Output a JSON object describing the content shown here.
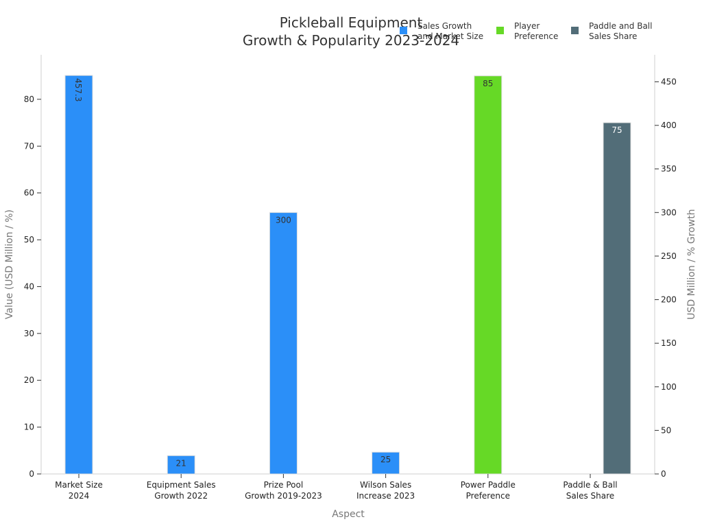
{
  "chart_data": {
    "type": "bar",
    "title": [
      "Pickleball Equipment",
      "Growth & Popularity 2023-2024"
    ],
    "xlabel": "Aspect",
    "ylabel": "Value (USD Million / %)",
    "y2label": "USD Million / % Growth",
    "categories": [
      [
        "Market Size",
        "2024"
      ],
      [
        "Equipment Sales",
        "Growth 2022"
      ],
      [
        "Prize Pool",
        "Growth 2019-2023"
      ],
      [
        "Wilson Sales",
        "Increase 2023"
      ],
      [
        "Power Paddle",
        "Preference"
      ],
      [
        "Paddle & Ball",
        "Sales Share"
      ]
    ],
    "ylim": [
      0,
      89.5
    ],
    "y_ticks": [
      0,
      10,
      20,
      30,
      40,
      50,
      60,
      70,
      80
    ],
    "y2lim": [
      0,
      481
    ],
    "y2_ticks": [
      0,
      50,
      100,
      150,
      200,
      250,
      300,
      350,
      400,
      450
    ],
    "legend_position": "top-right",
    "grid": false,
    "series": [
      {
        "name": [
          "Sales Growth",
          "and Market Size"
        ],
        "color": "#2b8ff8",
        "axis": "right",
        "slot": 0,
        "values": [
          457.3,
          21,
          300,
          25,
          null,
          null
        ],
        "labels": [
          "457.3",
          "21",
          "300",
          "25",
          null,
          null
        ],
        "label_color": "#333333"
      },
      {
        "name": [
          "Player",
          "Preference"
        ],
        "color": "#66d926",
        "axis": "left",
        "slot": 0,
        "values": [
          null,
          null,
          null,
          null,
          85,
          null
        ],
        "labels": [
          null,
          null,
          null,
          null,
          "85",
          null
        ],
        "label_color": "#333333"
      },
      {
        "name": [
          "Paddle and Ball",
          "Sales Share"
        ],
        "color": "#526d78",
        "axis": "left",
        "slot": 1,
        "values": [
          null,
          null,
          null,
          null,
          null,
          75
        ],
        "labels": [
          null,
          null,
          null,
          null,
          null,
          "75"
        ],
        "label_color": "#ffffff"
      }
    ]
  }
}
